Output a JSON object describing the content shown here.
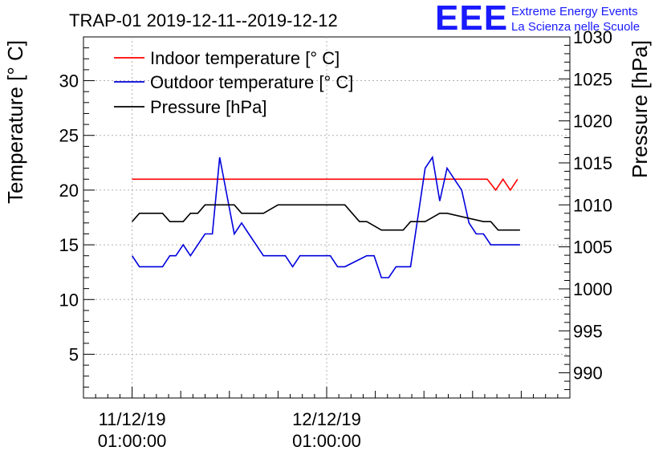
{
  "chart_data": {
    "type": "line",
    "title": "TRAP-01 2019-12-11--2019-12-12",
    "logo": {
      "letters": "EEE",
      "line1": "Extreme Energy Events",
      "line2": "La Scienza nelle Scuole"
    },
    "ylabel_left": "Temperature [° C]",
    "ylabel_right": "Pressure [hPa]",
    "ylim_left": [
      1,
      34
    ],
    "ylim_right": [
      987,
      1030
    ],
    "left_ticks": [
      "5",
      "10",
      "15",
      "20",
      "25",
      "30"
    ],
    "right_ticks": [
      "990",
      "995",
      "1000",
      "1005",
      "1010",
      "1015",
      "1020",
      "1025",
      "1030"
    ],
    "xlim": [
      0,
      40
    ],
    "x_ticks": [
      {
        "line1": "11/12/19",
        "line2": "01:00:00"
      },
      {
        "line1": "12/12/19",
        "line2": "01:00:00"
      }
    ],
    "grid": true,
    "legend_position": "top-left",
    "colors": {
      "indoor": "#ff0000",
      "outdoor": "#0000dd",
      "pressure": "#000000"
    },
    "series": [
      {
        "name": "Indoor temperature [° C]",
        "axis": "left",
        "color": "#ff0000",
        "x": [
          4,
          7,
          10,
          13,
          16,
          19,
          22,
          25,
          28,
          31,
          33.2,
          33.9,
          34.5,
          35.1,
          35.7
        ],
        "y": [
          21,
          21,
          21,
          21,
          21,
          21,
          21,
          21,
          21,
          21,
          21,
          20,
          21,
          20,
          21
        ]
      },
      {
        "name": "Outdoor temperature [° C]",
        "axis": "left",
        "color": "#0000dd",
        "x": [
          4,
          4.6,
          5.2,
          6.5,
          7.1,
          7.6,
          8.2,
          8.8,
          9.4,
          10,
          10.6,
          11.2,
          12.4,
          13,
          13.6,
          14.2,
          14.8,
          16,
          16.6,
          17.2,
          17.8,
          18.4,
          20.3,
          20.9,
          21.5,
          23.3,
          23.9,
          24.5,
          25.1,
          25.7,
          26.3,
          26.9,
          28.1,
          28.7,
          29.3,
          29.9,
          30.5,
          31.1,
          31.7,
          32.3,
          32.9,
          33.5,
          34.1,
          35.9
        ],
        "y": [
          14,
          13,
          13,
          13,
          14,
          14,
          15,
          14,
          15,
          16,
          16,
          23,
          16,
          17,
          16,
          15,
          14,
          14,
          14,
          13,
          14,
          14,
          14,
          13,
          13,
          14,
          14,
          12,
          12,
          13,
          13,
          13,
          22,
          23,
          19,
          22,
          21,
          20,
          17,
          16,
          16,
          15,
          15,
          15
        ]
      },
      {
        "name": "Pressure [hPa]",
        "axis": "right",
        "color": "#000000",
        "x": [
          4,
          4.6,
          6.5,
          7.1,
          8.2,
          8.8,
          9.4,
          10,
          12.4,
          13,
          14.8,
          16,
          16.6,
          17.2,
          21.5,
          22.1,
          22.7,
          23.3,
          24.5,
          25.1,
          26.3,
          26.9,
          27.5,
          28.1,
          29.3,
          29.9,
          32.9,
          33.5,
          34.1,
          35.9
        ],
        "y": [
          1008,
          1009,
          1009,
          1008,
          1008,
          1009,
          1009,
          1010,
          1010,
          1009,
          1009,
          1010,
          1010,
          1010,
          1010,
          1009,
          1008,
          1008,
          1007,
          1007,
          1007,
          1008,
          1008,
          1008,
          1009,
          1009,
          1008,
          1008,
          1007,
          1007
        ]
      }
    ]
  }
}
